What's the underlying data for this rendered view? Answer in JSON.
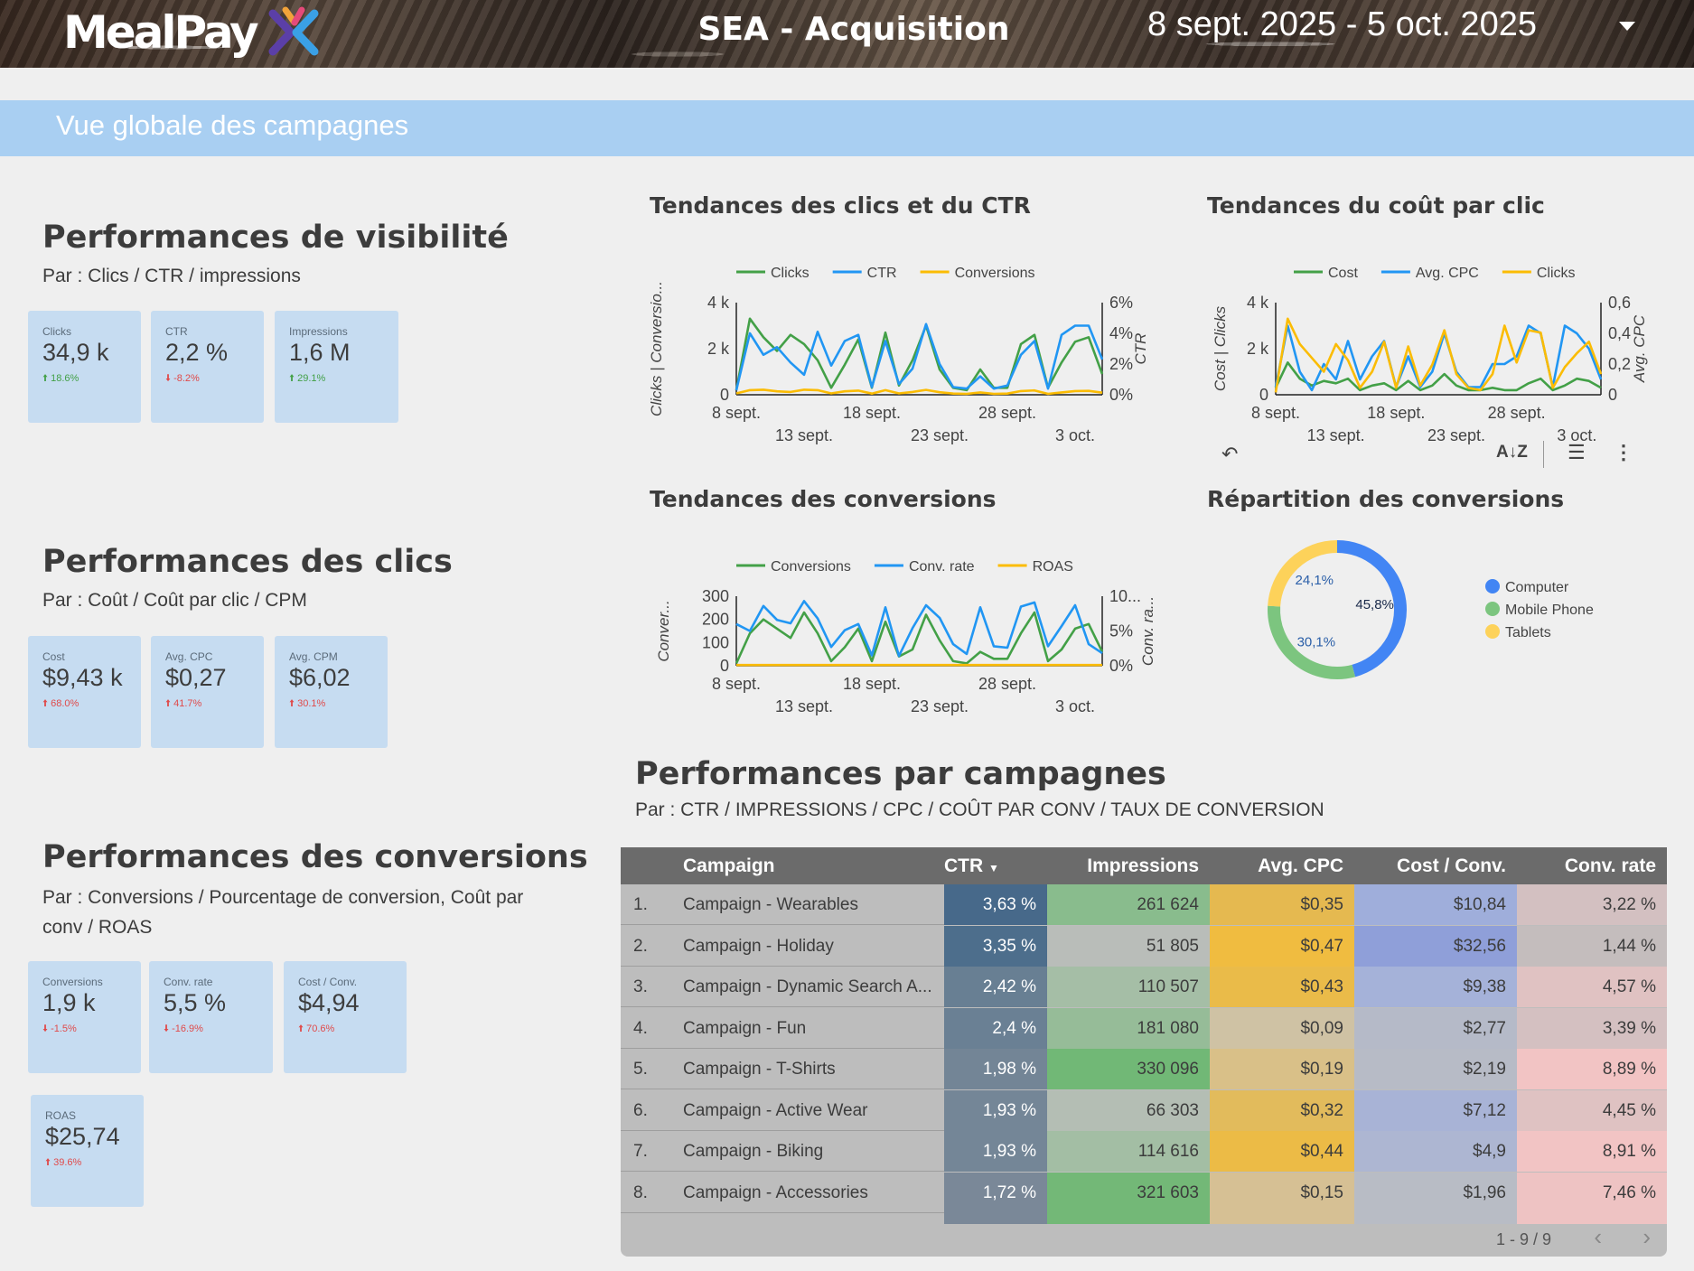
{
  "header": {
    "logo_text": "MealPay",
    "title": "SEA - Acquisition",
    "date_range": "8 sept. 2025 - 5 oct. 2025"
  },
  "banner": {
    "text": "Vue globale des campagnes"
  },
  "sections": {
    "visibility": {
      "title": "Performances de visibilité",
      "subtitle": "Par : Clics / CTR / impressions",
      "kpis": [
        {
          "label": "Clicks",
          "value": "34,9 k",
          "delta": "18.6%",
          "dir": "up",
          "color": "green"
        },
        {
          "label": "CTR",
          "value": "2,2 %",
          "delta": "-8.2%",
          "dir": "down",
          "color": "red"
        },
        {
          "label": "Impressions",
          "value": "1,6 M",
          "delta": "29.1%",
          "dir": "up",
          "color": "green"
        }
      ]
    },
    "clicks": {
      "title": "Performances des clics",
      "subtitle": "Par : Coût / Coût par clic / CPM",
      "kpis": [
        {
          "label": "Cost",
          "value": "$9,43 k",
          "delta": "68.0%",
          "dir": "up",
          "color": "red"
        },
        {
          "label": "Avg. CPC",
          "value": "$0,27",
          "delta": "41.7%",
          "dir": "up",
          "color": "red"
        },
        {
          "label": "Avg. CPM",
          "value": "$6,02",
          "delta": "30.1%",
          "dir": "up",
          "color": "red"
        }
      ]
    },
    "conversions": {
      "title": "Performances des conversions",
      "subtitle": "Par : Conversions / Pourcentage de conversion, Coût par conv / ROAS",
      "kpis": [
        {
          "label": "Conversions",
          "value": "1,9 k",
          "delta": "-1.5%",
          "dir": "down",
          "color": "red"
        },
        {
          "label": "Conv. rate",
          "value": "5,5 %",
          "delta": "-16.9%",
          "dir": "down",
          "color": "red"
        },
        {
          "label": "Cost / Conv.",
          "value": "$4,94",
          "delta": "70.6%",
          "dir": "up",
          "color": "red"
        },
        {
          "label": "ROAS",
          "value": "$25,74",
          "delta": "39.6%",
          "dir": "up",
          "color": "red"
        }
      ]
    }
  },
  "charts": {
    "clicks_ctr": {
      "title": "Tendances des clics et du CTR",
      "legend": [
        "Clicks",
        "CTR",
        "Conversions"
      ],
      "y_left_label": "Clicks | Conversio...",
      "y_right_label": "CTR",
      "y_left_ticks": [
        "4 k",
        "2 k",
        "0"
      ],
      "y_right_ticks": [
        "6%",
        "4%",
        "2%",
        "0%"
      ],
      "x_ticks_top": [
        "8 sept.",
        "18 sept.",
        "28 sept."
      ],
      "x_ticks_bottom": [
        "13 sept.",
        "23 sept.",
        "3 oct."
      ]
    },
    "cpc": {
      "title": "Tendances du coût par clic",
      "legend": [
        "Cost",
        "Avg. CPC",
        "Clicks"
      ],
      "y_left_label": "Cost | Clicks",
      "y_right_label": "Avg. CPC",
      "y_left_ticks": [
        "4 k",
        "2 k",
        "0"
      ],
      "y_right_ticks": [
        "0,6",
        "0,4",
        "0,2",
        "0"
      ],
      "x_ticks_top": [
        "8 sept.",
        "18 sept.",
        "28 sept."
      ],
      "x_ticks_bottom": [
        "13 sept.",
        "23 sept.",
        "3 oct."
      ]
    },
    "conversions": {
      "title": "Tendances des conversions",
      "legend": [
        "Conversions",
        "Conv. rate",
        "ROAS"
      ],
      "y_left_label": "Conver...",
      "y_right_label": "Conv. ra...",
      "y_left_ticks": [
        "300",
        "200",
        "100",
        "0"
      ],
      "y_right_ticks": [
        "10...",
        "5%",
        "0%"
      ],
      "x_ticks_top": [
        "8 sept.",
        "18 sept.",
        "28 sept."
      ],
      "x_ticks_bottom": [
        "13 sept.",
        "23 sept.",
        "3 oct."
      ]
    },
    "repartition": {
      "title": "Répartition des conversions",
      "legend": [
        "Computer",
        "Mobile Phone",
        "Tablets"
      ],
      "slices": [
        {
          "name": "Computer",
          "value": 45.8,
          "label": "45,8%",
          "color": "#4285f4"
        },
        {
          "name": "Mobile Phone",
          "value": 30.1,
          "label": "30,1%",
          "color": "#7cc57f"
        },
        {
          "name": "Tablets",
          "value": 24.1,
          "label": "24,1%",
          "color": "#fdd25a"
        }
      ]
    }
  },
  "chart_data": [
    {
      "type": "line",
      "title": "Tendances des clics et du CTR",
      "x": [
        "8 sept.",
        "9 sept.",
        "10 sept.",
        "11 sept.",
        "12 sept.",
        "13 sept.",
        "14 sept.",
        "15 sept.",
        "16 sept.",
        "17 sept.",
        "18 sept.",
        "19 sept.",
        "20 sept.",
        "21 sept.",
        "22 sept.",
        "23 sept.",
        "24 sept.",
        "25 sept.",
        "26 sept.",
        "27 sept.",
        "28 sept.",
        "29 sept.",
        "30 sept.",
        "1 oct.",
        "2 oct.",
        "3 oct.",
        "4 oct.",
        "5 oct."
      ],
      "ylim_left": [
        0,
        4000
      ],
      "ylim_right": [
        0,
        6
      ],
      "series": [
        {
          "name": "Clicks",
          "axis": "left",
          "color": "#43a047",
          "values": [
            200,
            3300,
            2500,
            1900,
            2600,
            2200,
            1500,
            300,
            1300,
            2400,
            300,
            2700,
            400,
            1500,
            3000,
            1100,
            300,
            200,
            1100,
            300,
            300,
            2200,
            2600,
            300,
            1400,
            2300,
            2500,
            900
          ]
        },
        {
          "name": "CTR",
          "axis": "right",
          "color": "#2196f3",
          "values": [
            0.3,
            4.0,
            2.6,
            3.1,
            2.1,
            1.3,
            4.1,
            1.9,
            3.5,
            3.9,
            0.5,
            3.5,
            0.7,
            1.7,
            4.6,
            2.0,
            0.5,
            0.4,
            1.2,
            0.4,
            0.6,
            2.6,
            3.5,
            0.4,
            3.9,
            4.5,
            4.5,
            2.3
          ]
        },
        {
          "name": "Conversions",
          "axis": "left",
          "color": "#fbbc04",
          "values": [
            60,
            200,
            220,
            150,
            120,
            220,
            200,
            60,
            150,
            180,
            50,
            200,
            60,
            120,
            210,
            110,
            50,
            40,
            100,
            40,
            50,
            160,
            190,
            40,
            100,
            160,
            170,
            90
          ]
        }
      ]
    },
    {
      "type": "line",
      "title": "Tendances du coût par clic",
      "x": [
        "8 sept.",
        "9 sept.",
        "10 sept.",
        "11 sept.",
        "12 sept.",
        "13 sept.",
        "14 sept.",
        "15 sept.",
        "16 sept.",
        "17 sept.",
        "18 sept.",
        "19 sept.",
        "20 sept.",
        "21 sept.",
        "22 sept.",
        "23 sept.",
        "24 sept.",
        "25 sept.",
        "26 sept.",
        "27 sept.",
        "28 sept.",
        "29 sept.",
        "30 sept.",
        "1 oct.",
        "2 oct.",
        "3 oct.",
        "4 oct.",
        "5 oct."
      ],
      "ylim_left": [
        0,
        4000
      ],
      "ylim_right": [
        0,
        0.6
      ],
      "series": [
        {
          "name": "Cost",
          "axis": "left",
          "color": "#43a047",
          "values": [
            300,
            1400,
            700,
            400,
            600,
            500,
            700,
            200,
            400,
            500,
            200,
            600,
            200,
            400,
            900,
            400,
            200,
            200,
            300,
            200,
            200,
            500,
            700,
            200,
            400,
            700,
            600,
            300
          ]
        },
        {
          "name": "Avg. CPC",
          "axis": "right",
          "color": "#2196f3",
          "values": [
            0.05,
            0.45,
            0.15,
            0.03,
            0.2,
            0.1,
            0.35,
            0.1,
            0.25,
            0.35,
            0.05,
            0.25,
            0.05,
            0.15,
            0.4,
            0.15,
            0.05,
            0.05,
            0.2,
            0.2,
            0.25,
            0.45,
            0.4,
            0.05,
            0.45,
            0.4,
            0.3,
            0.1
          ]
        },
        {
          "name": "Clicks",
          "axis": "left",
          "color": "#fbbc04",
          "values": [
            100,
            3300,
            2200,
            1600,
            1000,
            2200,
            1500,
            300,
            1000,
            2300,
            300,
            2100,
            400,
            1300,
            2800,
            900,
            300,
            200,
            900,
            3000,
            1400,
            2800,
            2700,
            300,
            1200,
            1800,
            2300,
            900
          ]
        }
      ]
    },
    {
      "type": "line",
      "title": "Tendances des conversions",
      "x": [
        "8 sept.",
        "9 sept.",
        "10 sept.",
        "11 sept.",
        "12 sept.",
        "13 sept.",
        "14 sept.",
        "15 sept.",
        "16 sept.",
        "17 sept.",
        "18 sept.",
        "19 sept.",
        "20 sept.",
        "21 sept.",
        "22 sept.",
        "23 sept.",
        "24 sept.",
        "25 sept.",
        "26 sept.",
        "27 sept.",
        "28 sept.",
        "29 sept.",
        "30 sept.",
        "1 oct.",
        "2 oct.",
        "3 oct.",
        "4 oct.",
        "5 oct."
      ],
      "ylim_left": [
        0,
        300
      ],
      "ylim_right": [
        0,
        10
      ],
      "series": [
        {
          "name": "Conversions",
          "axis": "left",
          "color": "#43a047",
          "values": [
            10,
            140,
            200,
            160,
            120,
            230,
            140,
            20,
            80,
            160,
            20,
            190,
            40,
            70,
            220,
            110,
            20,
            10,
            60,
            30,
            30,
            140,
            230,
            20,
            70,
            160,
            180,
            60
          ]
        },
        {
          "name": "Conv. rate",
          "axis": "right",
          "color": "#2196f3",
          "values": [
            6.0,
            5.0,
            8.6,
            6.6,
            6.1,
            9.3,
            6.8,
            2.7,
            5.1,
            6.0,
            1.5,
            8.4,
            1.4,
            5.4,
            8.7,
            6.9,
            3.1,
            1.7,
            8.4,
            2.8,
            2.6,
            8.5,
            9.1,
            2.8,
            5.7,
            8.7,
            3.1,
            1.8
          ]
        },
        {
          "name": "ROAS",
          "axis": "right",
          "color": "#fbbc04",
          "values": [
            0.1,
            0.1,
            0.1,
            0.1,
            0.1,
            0.1,
            0.1,
            0.1,
            0.1,
            0.1,
            0.1,
            0.1,
            0.1,
            0.1,
            0.1,
            0.1,
            0.1,
            0.1,
            0.1,
            0.1,
            0.1,
            0.1,
            0.1,
            0.1,
            0.1,
            0.1,
            0.1,
            0.1
          ]
        }
      ]
    },
    {
      "type": "pie",
      "title": "Répartition des conversions",
      "categories": [
        "Computer",
        "Mobile Phone",
        "Tablets"
      ],
      "values": [
        45.8,
        30.1,
        24.1
      ]
    }
  ],
  "table": {
    "title": "Performances par campagnes",
    "subtitle": "Par : CTR / IMPRESSIONS / CPC / COÛT PAR CONV / TAUX DE CONVERSION",
    "headers": [
      "Campaign",
      "CTR",
      "Impressions",
      "Avg. CPC",
      "Cost / Conv.",
      "Conv. rate"
    ],
    "rows": [
      {
        "n": "1.",
        "campaign": "Campaign - Wearables",
        "ctr": "3,63 %",
        "impr": "261 624",
        "cpc": "$0,35",
        "cpa": "$10,84",
        "rate": "3,22 %"
      },
      {
        "n": "2.",
        "campaign": "Campaign - Holiday",
        "ctr": "3,35 %",
        "impr": "51 805",
        "cpc": "$0,47",
        "cpa": "$32,56",
        "rate": "1,44 %"
      },
      {
        "n": "3.",
        "campaign": "Campaign - Dynamic Search A...",
        "ctr": "2,42 %",
        "impr": "110 507",
        "cpc": "$0,43",
        "cpa": "$9,38",
        "rate": "4,57 %"
      },
      {
        "n": "4.",
        "campaign": "Campaign - Fun",
        "ctr": "2,4 %",
        "impr": "181 080",
        "cpc": "$0,09",
        "cpa": "$2,77",
        "rate": "3,39 %"
      },
      {
        "n": "5.",
        "campaign": "Campaign - T-Shirts",
        "ctr": "1,98 %",
        "impr": "330 096",
        "cpc": "$0,19",
        "cpa": "$2,19",
        "rate": "8,89 %"
      },
      {
        "n": "6.",
        "campaign": "Campaign - Active Wear",
        "ctr": "1,93 %",
        "impr": "66 303",
        "cpc": "$0,32",
        "cpa": "$7,12",
        "rate": "4,45 %"
      },
      {
        "n": "7.",
        "campaign": "Campaign - Biking",
        "ctr": "1,93 %",
        "impr": "114 616",
        "cpc": "$0,44",
        "cpa": "$4,9",
        "rate": "8,91 %"
      },
      {
        "n": "8.",
        "campaign": "Campaign - Accessories",
        "ctr": "1,72 %",
        "impr": "321 603",
        "cpc": "$0,15",
        "cpa": "$1,96",
        "rate": "7,46 %"
      }
    ],
    "pager": "1 - 9 / 9"
  }
}
